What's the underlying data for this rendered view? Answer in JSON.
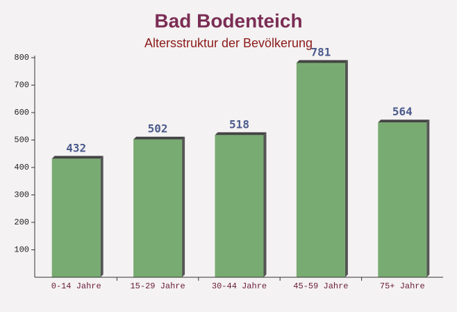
{
  "chart_data": {
    "type": "bar",
    "title": "Bad Bodenteich",
    "subtitle": "Altersstruktur der Bevölkerung",
    "categories": [
      "0-14 Jahre",
      "15-29 Jahre",
      "30-44 Jahre",
      "45-59 Jahre",
      "75+ Jahre"
    ],
    "values": [
      432,
      502,
      518,
      781,
      564
    ],
    "color": "#6aa363",
    "ylim": [
      0,
      800
    ],
    "yticks": [
      100,
      200,
      300,
      400,
      500,
      600,
      700,
      800
    ]
  }
}
